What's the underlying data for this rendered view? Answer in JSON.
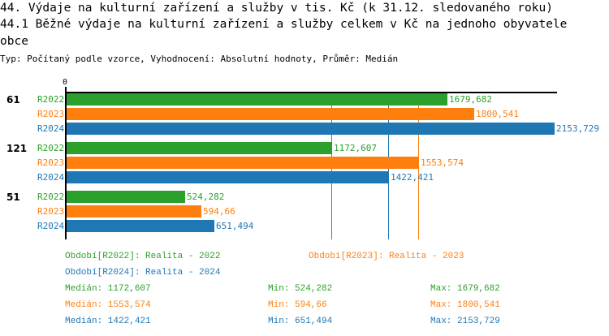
{
  "header": {
    "title1": "44. Výdaje na kulturní zařízení a služby v tis. Kč (k 31.12. sledovaného roku)",
    "title2": "44.1 Běžné výdaje na kulturní zařízení a služby celkem v Kč na jednoho obyvatele",
    "title3": "obce",
    "subtitle": "Typ: Počítaný podle vzorce, Vyhodnocení: Absolutní hodnoty, Průměr: Medián"
  },
  "chart_data": {
    "type": "bar",
    "orientation": "horizontal",
    "axis_zero_label": "0",
    "xlim": [
      0,
      2160
    ],
    "categories": [
      "61",
      "121",
      "51"
    ],
    "series": [
      {
        "name": "R2022",
        "color": "#2ca02c",
        "values": [
          1679.682,
          1172.607,
          524.282
        ],
        "labels": [
          "1679,682",
          "1172,607",
          "524,282"
        ]
      },
      {
        "name": "R2023",
        "color": "#ff7f0e",
        "values": [
          1800.541,
          1553.574,
          594.66
        ],
        "labels": [
          "1800,541",
          "1553,574",
          "594,66"
        ]
      },
      {
        "name": "R2024",
        "color": "#1f77b4",
        "values": [
          2153.729,
          1422.421,
          651.494
        ],
        "labels": [
          "2153,729",
          "1422,421",
          "651,494"
        ]
      }
    ],
    "medians": [
      1172.607,
      1553.574,
      1422.421
    ]
  },
  "legend": {
    "periods": [
      "Období[R2022]: Realita - 2022",
      "Období[R2023]: Realita - 2023",
      "Období[R2024]: Realita - 2024"
    ],
    "stats": [
      {
        "median": "Medián: 1172,607",
        "min": "Min: 524,282",
        "max": "Max: 1679,682"
      },
      {
        "median": "Medián: 1553,574",
        "min": "Min: 594,66",
        "max": "Max: 1800,541"
      },
      {
        "median": "Medián: 1422,421",
        "min": "Min: 651,494",
        "max": "Max: 2153,729"
      }
    ]
  }
}
